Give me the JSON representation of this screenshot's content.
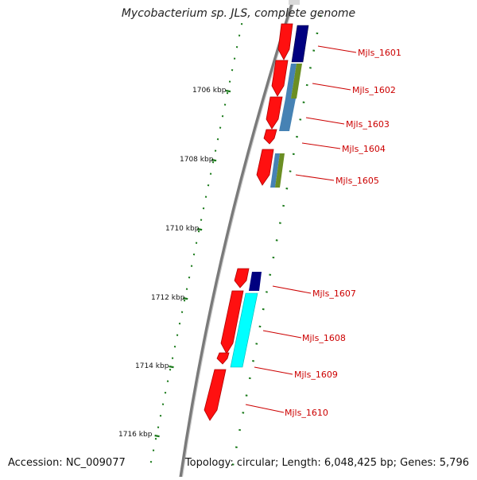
{
  "title": "Mycobacterium sp. JLS, complete genome",
  "footer": {
    "accession": "Accession: NC_009077",
    "summary": "Topology: circular; Length: 6,048,425 bp; Genes: 5,796"
  },
  "kbp_ticks": [
    "1706 kbp",
    "1708 kbp",
    "1710 kbp",
    "1712 kbp",
    "1714 kbp",
    "1716 kbp"
  ],
  "genes": [
    {
      "label": "Mjls_1601"
    },
    {
      "label": "Mjls_1602"
    },
    {
      "label": "Mjls_1603"
    },
    {
      "label": "Mjls_1604"
    },
    {
      "label": "Mjls_1605"
    },
    {
      "label": "Mjls_1607"
    },
    {
      "label": "Mjls_1608"
    },
    {
      "label": "Mjls_1609"
    },
    {
      "label": "Mjls_1610"
    }
  ],
  "colors": {
    "forward_cds": "#ff1010",
    "cog_navy": "#000080",
    "cog_olive": "#6b8e23",
    "cog_steelblue": "#4682b4",
    "cog_cyan": "#00ffff",
    "backbone": "#888888",
    "tick": "#1a7a1a",
    "label": "#cc0000"
  }
}
